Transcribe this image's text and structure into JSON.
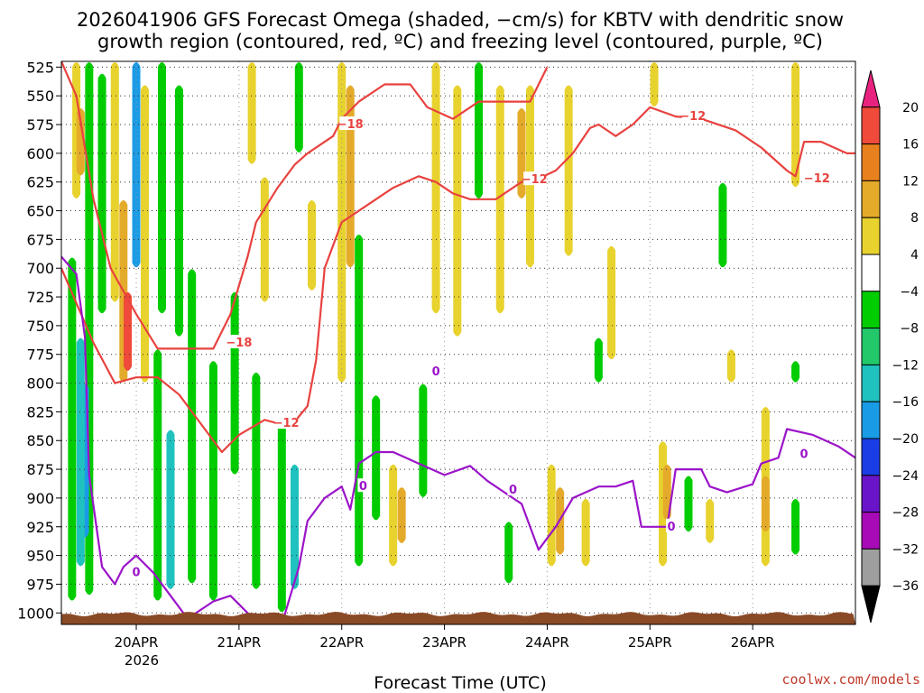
{
  "title_lines": [
    "2026041906 GFS Forecast Omega (shaded, −cm/s) for KBTV with dendritic snow",
    "growth region (contoured, red, ºC) and freezing level (contoured, purple, ºC)"
  ],
  "credit": "coolwx.com/models",
  "colors": {
    "dgz_contour": "#e8423f",
    "freezing_contour": "#9b14c9",
    "terrain": "#8b4a26",
    "grid": "#333333"
  },
  "chart_data": {
    "type": "heatmap",
    "xlabel": "Forecast Time (UTC)",
    "x_ticks": [
      "20APR",
      "21APR",
      "22APR",
      "23APR",
      "24APR",
      "25APR",
      "26APR"
    ],
    "x_year_label": "2026",
    "x_range_hours": [
      -17.5,
      168
    ],
    "y_ticks": [
      525,
      550,
      575,
      600,
      625,
      650,
      675,
      700,
      725,
      750,
      775,
      800,
      825,
      850,
      875,
      900,
      925,
      950,
      975,
      1000
    ],
    "y_range_hpa": [
      520,
      1010
    ],
    "grid": true,
    "colorbar": {
      "labels": [
        "20",
        "16",
        "12",
        "8",
        "4",
        "−4",
        "−8",
        "−12",
        "−16",
        "−20",
        "−24",
        "−28",
        "−32",
        "−36"
      ],
      "bins": [
        {
          "color": "#e8237f"
        },
        {
          "color": "#f04a3a"
        },
        {
          "color": "#e8801e"
        },
        {
          "color": "#e4aa2a"
        },
        {
          "color": "#e8d22e"
        },
        {
          "color": "#ffffff"
        },
        {
          "color": "#00cc00"
        },
        {
          "color": "#22c86a"
        },
        {
          "color": "#1fc2bf"
        },
        {
          "color": "#1a9be6"
        },
        {
          "color": "#1a3ee6"
        },
        {
          "color": "#6a14c9"
        },
        {
          "color": "#a80ab8"
        },
        {
          "color": "#9e9e9e"
        },
        {
          "color": "#000000"
        }
      ]
    },
    "shaded_regions": [
      {
        "cls": "yellow",
        "hour": -14,
        "p_top": 520,
        "p_bot": 640
      },
      {
        "cls": "orange",
        "hour": -13,
        "p_top": 560,
        "p_bot": 620
      },
      {
        "cls": "green",
        "hour": -11,
        "p_top": 520,
        "p_bot": 985
      },
      {
        "cls": "blue",
        "hour": -12,
        "p_top": 800,
        "p_bot": 935
      },
      {
        "cls": "cyan",
        "hour": -13,
        "p_top": 760,
        "p_bot": 960
      },
      {
        "cls": "green",
        "hour": -15,
        "p_top": 690,
        "p_bot": 990
      },
      {
        "cls": "green",
        "hour": -8,
        "p_top": 530,
        "p_bot": 740
      },
      {
        "cls": "yellow",
        "hour": -5,
        "p_top": 520,
        "p_bot": 730
      },
      {
        "cls": "orange",
        "hour": -3,
        "p_top": 640,
        "p_bot": 800
      },
      {
        "cls": "red",
        "hour": -2,
        "p_top": 720,
        "p_bot": 790
      },
      {
        "cls": "blue",
        "hour": 0,
        "p_top": 520,
        "p_bot": 700
      },
      {
        "cls": "yellow",
        "hour": 2,
        "p_top": 540,
        "p_bot": 800
      },
      {
        "cls": "green",
        "hour": 6,
        "p_top": 520,
        "p_bot": 740
      },
      {
        "cls": "green",
        "hour": 5,
        "p_top": 770,
        "p_bot": 990
      },
      {
        "cls": "cyan",
        "hour": 8,
        "p_top": 840,
        "p_bot": 980
      },
      {
        "cls": "green",
        "hour": 10,
        "p_top": 540,
        "p_bot": 760
      },
      {
        "cls": "green",
        "hour": 13,
        "p_top": 700,
        "p_bot": 975
      },
      {
        "cls": "green",
        "hour": 18,
        "p_top": 780,
        "p_bot": 990
      },
      {
        "cls": "green",
        "hour": 23,
        "p_top": 720,
        "p_bot": 880
      },
      {
        "cls": "green",
        "hour": 28,
        "p_top": 790,
        "p_bot": 980
      },
      {
        "cls": "green",
        "hour": 34,
        "p_top": 830,
        "p_bot": 1000
      },
      {
        "cls": "cyan",
        "hour": 37,
        "p_top": 870,
        "p_bot": 980
      },
      {
        "cls": "yellow",
        "hour": 30,
        "p_top": 620,
        "p_bot": 730
      },
      {
        "cls": "yellow",
        "hour": 27,
        "p_top": 520,
        "p_bot": 610
      },
      {
        "cls": "yellow",
        "hour": 41,
        "p_top": 640,
        "p_bot": 720
      },
      {
        "cls": "green",
        "hour": 38,
        "p_top": 520,
        "p_bot": 600
      },
      {
        "cls": "yellow",
        "hour": 48,
        "p_top": 520,
        "p_bot": 800
      },
      {
        "cls": "orange",
        "hour": 50,
        "p_top": 540,
        "p_bot": 700
      },
      {
        "cls": "green",
        "hour": 52,
        "p_top": 670,
        "p_bot": 960
      },
      {
        "cls": "green",
        "hour": 56,
        "p_top": 810,
        "p_bot": 920
      },
      {
        "cls": "yellow",
        "hour": 60,
        "p_top": 870,
        "p_bot": 960
      },
      {
        "cls": "orange",
        "hour": 62,
        "p_top": 890,
        "p_bot": 940
      },
      {
        "cls": "green",
        "hour": 67,
        "p_top": 800,
        "p_bot": 900
      },
      {
        "cls": "yellow",
        "hour": 70,
        "p_top": 520,
        "p_bot": 740
      },
      {
        "cls": "yellow",
        "hour": 75,
        "p_top": 540,
        "p_bot": 760
      },
      {
        "cls": "green",
        "hour": 80,
        "p_top": 520,
        "p_bot": 640
      },
      {
        "cls": "yellow",
        "hour": 85,
        "p_top": 540,
        "p_bot": 740
      },
      {
        "cls": "green",
        "hour": 87,
        "p_top": 920,
        "p_bot": 975
      },
      {
        "cls": "orange",
        "hour": 90,
        "p_top": 560,
        "p_bot": 640
      },
      {
        "cls": "yellow",
        "hour": 92,
        "p_top": 540,
        "p_bot": 700
      },
      {
        "cls": "yellow",
        "hour": 97,
        "p_top": 870,
        "p_bot": 960
      },
      {
        "cls": "orange",
        "hour": 99,
        "p_top": 890,
        "p_bot": 950
      },
      {
        "cls": "yellow",
        "hour": 101,
        "p_top": 540,
        "p_bot": 690
      },
      {
        "cls": "yellow",
        "hour": 105,
        "p_top": 900,
        "p_bot": 960
      },
      {
        "cls": "yellow",
        "hour": 111,
        "p_top": 680,
        "p_bot": 780
      },
      {
        "cls": "green",
        "hour": 108,
        "p_top": 760,
        "p_bot": 800
      },
      {
        "cls": "yellow",
        "hour": 121,
        "p_top": 520,
        "p_bot": 560
      },
      {
        "cls": "yellow",
        "hour": 123,
        "p_top": 850,
        "p_bot": 960
      },
      {
        "cls": "orange",
        "hour": 124,
        "p_top": 870,
        "p_bot": 920
      },
      {
        "cls": "green",
        "hour": 129,
        "p_top": 880,
        "p_bot": 930
      },
      {
        "cls": "yellow",
        "hour": 134,
        "p_top": 900,
        "p_bot": 940
      },
      {
        "cls": "green",
        "hour": 137,
        "p_top": 625,
        "p_bot": 700
      },
      {
        "cls": "yellow",
        "hour": 139,
        "p_top": 770,
        "p_bot": 800
      },
      {
        "cls": "yellow",
        "hour": 147,
        "p_top": 820,
        "p_bot": 960
      },
      {
        "cls": "orange",
        "hour": 147,
        "p_top": 880,
        "p_bot": 930
      },
      {
        "cls": "yellow",
        "hour": 154,
        "p_top": 520,
        "p_bot": 630
      },
      {
        "cls": "green",
        "hour": 154,
        "p_top": 780,
        "p_bot": 800
      },
      {
        "cls": "green",
        "hour": 154,
        "p_top": 900,
        "p_bot": 950
      }
    ],
    "contours": [
      {
        "name": "dgz_minus18",
        "color_key": "dgz_contour",
        "label": "−18",
        "label_points": [
          {
            "hour": 50,
            "p": 575
          },
          {
            "hour": 24,
            "p": 765
          }
        ],
        "points": [
          [
            -17.5,
            520
          ],
          [
            -14,
            550
          ],
          [
            -10,
            640
          ],
          [
            -6,
            700
          ],
          [
            0,
            740
          ],
          [
            5,
            770
          ],
          [
            10,
            770
          ],
          [
            18,
            770
          ],
          [
            22,
            740
          ],
          [
            26,
            690
          ],
          [
            28,
            660
          ],
          [
            33,
            630
          ],
          [
            37,
            610
          ],
          [
            40,
            600
          ],
          [
            46,
            585
          ],
          [
            48,
            570
          ],
          [
            52,
            555
          ],
          [
            58,
            540
          ],
          [
            64,
            540
          ],
          [
            68,
            560
          ],
          [
            74,
            570
          ],
          [
            80,
            555
          ],
          [
            86,
            555
          ],
          [
            92,
            555
          ],
          [
            96,
            525
          ]
        ]
      },
      {
        "name": "dgz_minus12",
        "color_key": "dgz_contour",
        "label": "−12",
        "label_points": [
          {
            "hour": 35,
            "p": 835
          },
          {
            "hour": 93,
            "p": 623
          },
          {
            "hour": 130,
            "p": 568
          },
          {
            "hour": 159,
            "p": 622
          }
        ],
        "points": [
          [
            -17.5,
            700
          ],
          [
            -10,
            765
          ],
          [
            -5,
            800
          ],
          [
            0,
            795
          ],
          [
            5,
            795
          ],
          [
            10,
            810
          ],
          [
            15,
            835
          ],
          [
            20,
            860
          ],
          [
            24,
            845
          ],
          [
            30,
            832
          ],
          [
            36,
            838
          ],
          [
            40,
            820
          ],
          [
            42,
            780
          ],
          [
            44,
            700
          ],
          [
            48,
            660
          ],
          [
            52,
            650
          ],
          [
            56,
            640
          ],
          [
            60,
            630
          ],
          [
            66,
            620
          ],
          [
            70,
            625
          ],
          [
            74,
            635
          ],
          [
            78,
            640
          ],
          [
            84,
            640
          ],
          [
            90,
            625
          ],
          [
            94,
            622
          ],
          [
            98,
            615
          ],
          [
            102,
            600
          ],
          [
            106,
            578
          ],
          [
            108,
            575
          ],
          [
            112,
            585
          ],
          [
            116,
            575
          ],
          [
            120,
            560
          ],
          [
            126,
            568
          ],
          [
            132,
            570
          ],
          [
            140,
            580
          ],
          [
            146,
            595
          ],
          [
            152,
            615
          ],
          [
            154,
            620
          ],
          [
            156,
            590
          ],
          [
            160,
            590
          ],
          [
            166,
            600
          ],
          [
            168,
            600
          ]
        ]
      },
      {
        "name": "freezing_level",
        "color_key": "freezing_contour",
        "label": "0",
        "label_points": [
          {
            "hour": 0,
            "p": 965
          },
          {
            "hour": 53,
            "p": 890
          },
          {
            "hour": 88,
            "p": 893
          },
          {
            "hour": 125,
            "p": 925
          },
          {
            "hour": 156,
            "p": 862
          }
        ],
        "points": [
          [
            -17.5,
            690
          ],
          [
            -14,
            705
          ],
          [
            -12,
            760
          ],
          [
            -11,
            880
          ],
          [
            -8,
            960
          ],
          [
            -5,
            975
          ],
          [
            -3,
            960
          ],
          [
            0,
            950
          ],
          [
            4,
            965
          ],
          [
            8,
            985
          ],
          [
            12,
            1005
          ],
          [
            18,
            990
          ],
          [
            22,
            985
          ],
          [
            26,
            1000
          ],
          [
            30,
            1015
          ],
          [
            34,
            1010
          ],
          [
            38,
            960
          ],
          [
            40,
            920
          ],
          [
            44,
            900
          ],
          [
            48,
            890
          ],
          [
            50,
            910
          ],
          [
            52,
            870
          ],
          [
            56,
            860
          ],
          [
            60,
            860
          ],
          [
            66,
            870
          ],
          [
            72,
            880
          ],
          [
            78,
            872
          ],
          [
            82,
            885
          ],
          [
            86,
            895
          ],
          [
            90,
            905
          ],
          [
            94,
            945
          ],
          [
            98,
            925
          ],
          [
            102,
            900
          ],
          [
            108,
            890
          ],
          [
            112,
            890
          ],
          [
            116,
            885
          ],
          [
            118,
            925
          ],
          [
            124,
            925
          ],
          [
            126,
            875
          ],
          [
            132,
            875
          ],
          [
            134,
            890
          ],
          [
            138,
            895
          ],
          [
            144,
            888
          ],
          [
            146,
            870
          ],
          [
            150,
            865
          ],
          [
            152,
            840
          ],
          [
            158,
            845
          ],
          [
            164,
            855
          ],
          [
            168,
            865
          ]
        ]
      }
    ],
    "isolated_labels": [
      {
        "text": "0",
        "color_key": "freezing_contour",
        "hour": 70,
        "p": 790
      }
    ]
  }
}
